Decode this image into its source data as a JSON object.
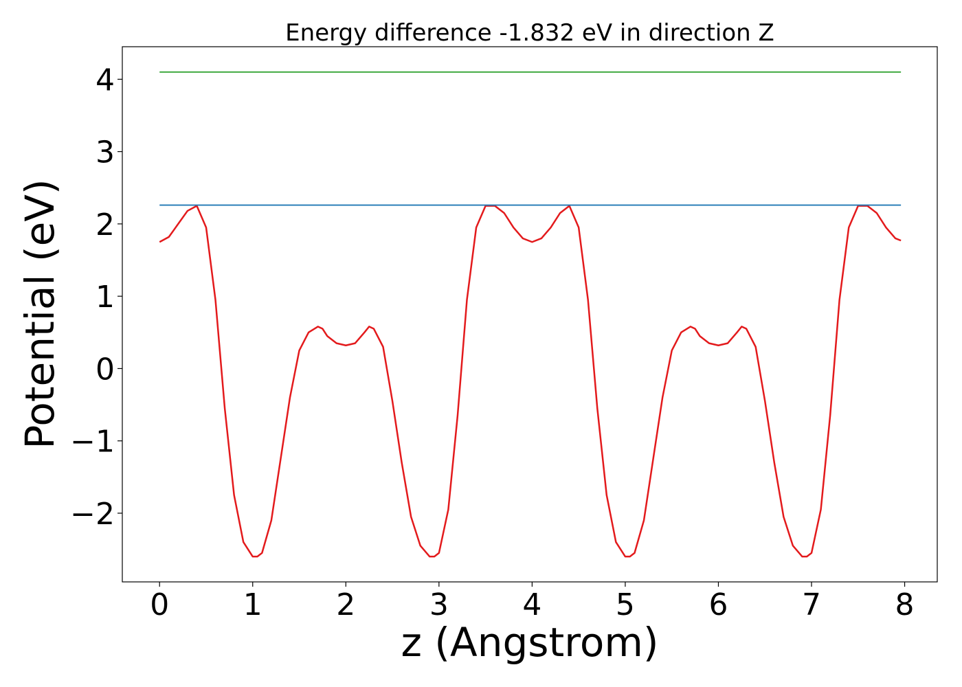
{
  "chart_data": {
    "type": "line",
    "title": "Energy difference -1.832 eV in direction Z",
    "xlabel": "z (Angstrom)",
    "ylabel": "Potential (eV)",
    "xlim": [
      -0.4,
      8.35
    ],
    "ylim": [
      -2.95,
      4.45
    ],
    "x_ticks": [
      0,
      1,
      2,
      3,
      4,
      5,
      6,
      7,
      8
    ],
    "x_tick_labels": [
      "0",
      "1",
      "2",
      "3",
      "4",
      "5",
      "6",
      "7",
      "8"
    ],
    "y_ticks": [
      -2,
      -1,
      0,
      1,
      2,
      3,
      4
    ],
    "y_tick_labels": [
      "−2",
      "−1",
      "0",
      "1",
      "2",
      "3",
      "4"
    ],
    "grid": false,
    "series": [
      {
        "color": "#e31a1c",
        "x": [
          0.0,
          0.1,
          0.2,
          0.3,
          0.4,
          0.5,
          0.6,
          0.7,
          0.8,
          0.9,
          1.0,
          1.05,
          1.1,
          1.2,
          1.3,
          1.4,
          1.5,
          1.6,
          1.7,
          1.75,
          1.8,
          1.9,
          2.0,
          2.1,
          2.2,
          2.25,
          2.3,
          2.4,
          2.5,
          2.6,
          2.7,
          2.8,
          2.9,
          2.95,
          3.0,
          3.1,
          3.2,
          3.3,
          3.4,
          3.5,
          3.6,
          3.7,
          3.8,
          3.9,
          4.0,
          4.1,
          4.2,
          4.3,
          4.4,
          4.5,
          4.6,
          4.7,
          4.8,
          4.9,
          5.0,
          5.05,
          5.1,
          5.2,
          5.3,
          5.4,
          5.5,
          5.6,
          5.7,
          5.75,
          5.8,
          5.9,
          6.0,
          6.1,
          6.2,
          6.25,
          6.3,
          6.4,
          6.5,
          6.6,
          6.7,
          6.8,
          6.9,
          6.95,
          7.0,
          7.1,
          7.2,
          7.3,
          7.4,
          7.5,
          7.6,
          7.7,
          7.8,
          7.9,
          7.96
        ],
        "y": [
          1.75,
          1.82,
          2.0,
          2.18,
          2.25,
          1.95,
          0.95,
          -0.55,
          -1.75,
          -2.4,
          -2.6,
          -2.6,
          -2.55,
          -2.1,
          -1.25,
          -0.4,
          0.25,
          0.5,
          0.58,
          0.55,
          0.45,
          0.35,
          0.32,
          0.35,
          0.5,
          0.58,
          0.55,
          0.3,
          -0.45,
          -1.3,
          -2.05,
          -2.45,
          -2.6,
          -2.6,
          -2.55,
          -1.95,
          -0.65,
          0.95,
          1.95,
          2.25,
          2.25,
          2.15,
          1.95,
          1.8,
          1.75,
          1.8,
          1.95,
          2.15,
          2.25,
          1.95,
          0.95,
          -0.55,
          -1.75,
          -2.4,
          -2.6,
          -2.6,
          -2.55,
          -2.1,
          -1.25,
          -0.4,
          0.25,
          0.5,
          0.58,
          0.55,
          0.45,
          0.35,
          0.32,
          0.35,
          0.5,
          0.58,
          0.55,
          0.3,
          -0.45,
          -1.3,
          -2.05,
          -2.45,
          -2.6,
          -2.6,
          -2.55,
          -1.95,
          -0.65,
          0.95,
          1.95,
          2.25,
          2.25,
          2.15,
          1.95,
          1.8,
          1.77
        ]
      },
      {
        "color": "#1f77b4",
        "x": [
          0.0,
          7.96
        ],
        "y": [
          2.26,
          2.26
        ]
      },
      {
        "color": "#2ca02c",
        "x": [
          0.0,
          7.96
        ],
        "y": [
          4.1,
          4.1
        ]
      }
    ]
  }
}
